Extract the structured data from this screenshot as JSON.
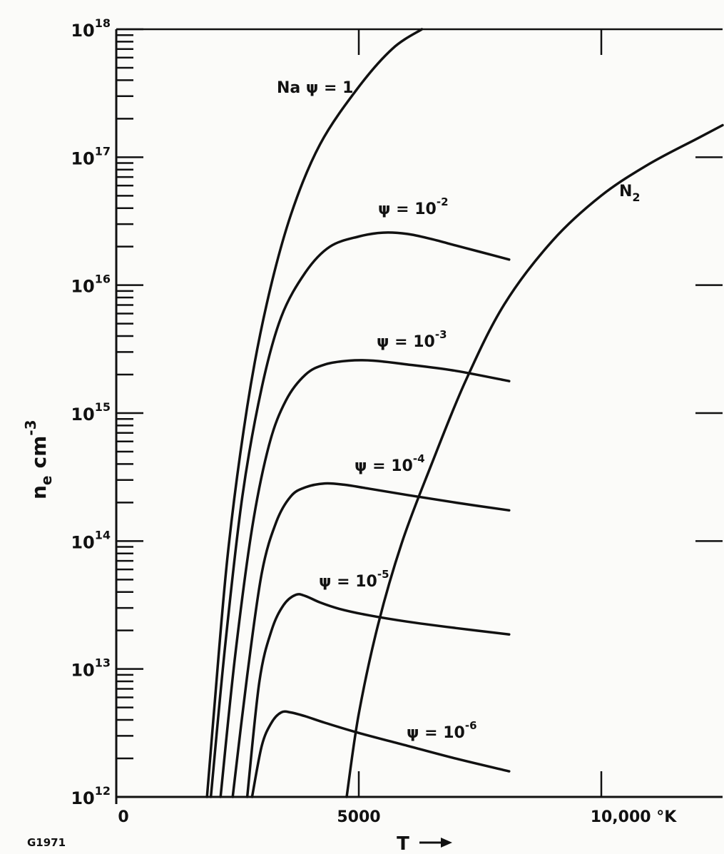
{
  "figure_id": "G1971",
  "chart_data": {
    "type": "line",
    "title": "",
    "xlabel": "T",
    "x_unit": "°K",
    "ylabel_main": "n",
    "ylabel_sub": "e",
    "ylabel_unit": "cm",
    "ylabel_exp": "-3",
    "x_axis_end_label": "10,000 °K",
    "xlim": [
      0,
      12500
    ],
    "ylim_log10": [
      12,
      18
    ],
    "y_scale": "log",
    "grid": false,
    "x_tick_labels": [
      {
        "value": 0,
        "label": "0"
      },
      {
        "value": 5000,
        "label": "5000"
      }
    ],
    "y_tick_labels": [
      {
        "value": 12,
        "base": "10",
        "exp": "12"
      },
      {
        "value": 13,
        "base": "10",
        "exp": "13"
      },
      {
        "value": 14,
        "base": "10",
        "exp": "14"
      },
      {
        "value": 15,
        "base": "10",
        "exp": "15"
      },
      {
        "value": 16,
        "base": "10",
        "exp": "16"
      },
      {
        "value": 17,
        "base": "10",
        "exp": "17"
      },
      {
        "value": 18,
        "base": "10",
        "exp": "18"
      }
    ],
    "series": [
      {
        "name": "Na ψ = 1",
        "label_prefix": "Na ψ = ",
        "label_base": "1",
        "label_exp": "",
        "x": [
          1870,
          2000,
          2300,
          2700,
          3100,
          3600,
          4200,
          5000,
          5700,
          6300
        ],
        "log10_y": [
          12.0,
          12.6,
          13.9,
          15.05,
          15.85,
          16.55,
          17.1,
          17.55,
          17.85,
          18.0
        ]
      },
      {
        "name": "ψ = 10-2",
        "label_prefix": "ψ = ",
        "label_base": "10",
        "label_exp": "-2",
        "x": [
          1950,
          2250,
          2600,
          3000,
          3400,
          3900,
          4400,
          5000,
          5500,
          6000,
          6500,
          7000,
          7500,
          8100
        ],
        "log10_y": [
          12.0,
          13.2,
          14.35,
          15.2,
          15.75,
          16.1,
          16.3,
          16.38,
          16.41,
          16.4,
          16.36,
          16.31,
          16.26,
          16.2
        ]
      },
      {
        "name": "ψ = 10-3",
        "label_prefix": "ψ = ",
        "label_base": "10",
        "label_exp": "-3",
        "x": [
          2150,
          2450,
          2800,
          3150,
          3500,
          3900,
          4300,
          4800,
          5300,
          6000,
          7000,
          8100
        ],
        "log10_y": [
          12.0,
          13.1,
          14.1,
          14.75,
          15.1,
          15.3,
          15.38,
          15.41,
          15.41,
          15.38,
          15.33,
          15.25
        ]
      },
      {
        "name": "ψ = 10-4",
        "label_prefix": "ψ = ",
        "label_base": "10",
        "label_exp": "-4",
        "x": [
          2400,
          2700,
          3000,
          3300,
          3600,
          3900,
          4300,
          4700,
          5200,
          6000,
          7000,
          8100
        ],
        "log10_y": [
          12.0,
          12.95,
          13.75,
          14.15,
          14.35,
          14.42,
          14.45,
          14.44,
          14.41,
          14.36,
          14.3,
          14.24
        ]
      },
      {
        "name": "ψ = 10-5",
        "label_prefix": "ψ = ",
        "label_base": "10",
        "label_exp": "-5",
        "x": [
          2700,
          2950,
          3200,
          3450,
          3700,
          3900,
          4200,
          4600,
          5200,
          6000,
          7000,
          8100
        ],
        "log10_y": [
          12.0,
          12.9,
          13.3,
          13.5,
          13.58,
          13.57,
          13.52,
          13.47,
          13.42,
          13.37,
          13.32,
          13.27
        ]
      },
      {
        "name": "ψ = 10-6",
        "label_prefix": "ψ = ",
        "label_base": "10",
        "label_exp": "-6",
        "x": [
          2800,
          3000,
          3200,
          3400,
          3600,
          3900,
          4300,
          5000,
          6000,
          7000,
          8100
        ],
        "log10_y": [
          12.0,
          12.4,
          12.58,
          12.66,
          12.66,
          12.63,
          12.58,
          12.5,
          12.4,
          12.3,
          12.2
        ]
      },
      {
        "name": "N2",
        "label_prefix": "N",
        "label_base": "",
        "label_exp": "",
        "label_sub": "2",
        "x": [
          4750,
          5000,
          5400,
          5900,
          6500,
          7200,
          8000,
          9000,
          10000,
          11000,
          12000,
          12500
        ],
        "log10_y": [
          12.0,
          12.65,
          13.35,
          14.0,
          14.6,
          15.25,
          15.85,
          16.35,
          16.7,
          16.95,
          17.15,
          17.25
        ]
      }
    ]
  }
}
